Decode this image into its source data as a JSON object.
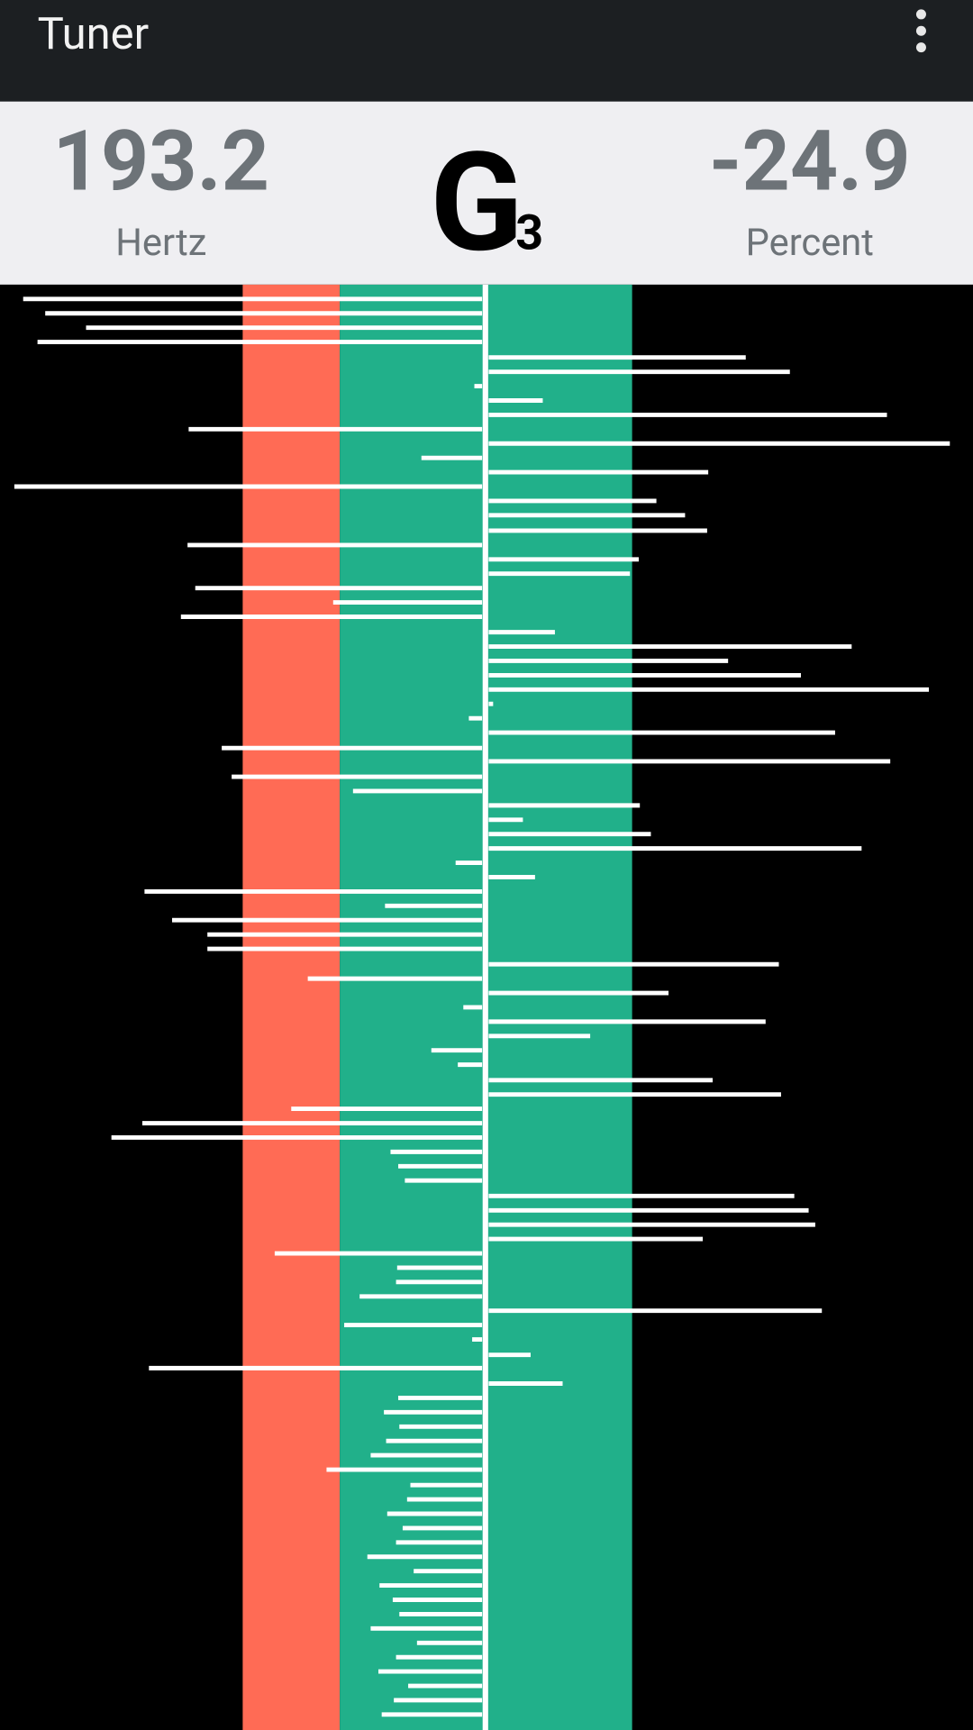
{
  "app_bar": {
    "title": "Tuner"
  },
  "readout": {
    "frequency": {
      "value": "193.2",
      "unit": "Hertz"
    },
    "note": {
      "name": "G",
      "octave": "3"
    },
    "deviation": {
      "value": "-24.9",
      "unit": "Percent"
    }
  }
}
